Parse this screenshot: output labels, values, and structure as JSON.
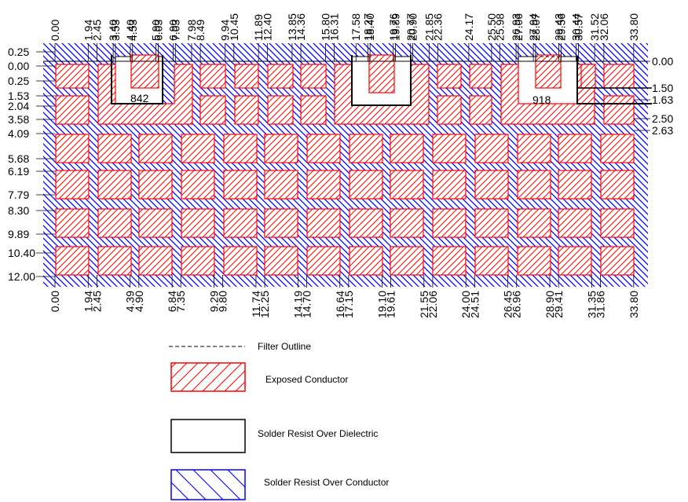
{
  "drawing": {
    "x_dimensions_top": [
      "0.00",
      "1.94",
      "2.45",
      "3.40",
      "3.53",
      "4.40",
      "4.53",
      "5.90",
      "6.03",
      "6.90",
      "7.03",
      "7.98",
      "8.49",
      "9.94",
      "10.45",
      "11.89",
      "12.40",
      "13.85",
      "14.36",
      "15.80",
      "16.31",
      "17.58",
      "18.27",
      "18.40",
      "19.76",
      "19.89",
      "20.77",
      "20.90",
      "21.85",
      "22.36",
      "24.17",
      "25.50",
      "25.98",
      "26.93",
      "27.06",
      "27.94",
      "28.07",
      "29.43",
      "29.56",
      "30.44",
      "30.57",
      "31.52",
      "32.06",
      "33.80"
    ],
    "x_dimensions_bottom": [
      "0.00",
      "1.94",
      "2.45",
      "4.39",
      "4.90",
      "6.84",
      "7.35",
      "9.29",
      "9.80",
      "11.74",
      "12.25",
      "14.19",
      "14.70",
      "16.64",
      "17.15",
      "19.10",
      "19.61",
      "21.55",
      "22.06",
      "24.00",
      "24.51",
      "26.45",
      "26.96",
      "28.90",
      "29.41",
      "31.35",
      "31.86",
      "33.80"
    ],
    "y_dimensions_left": [
      "0.25",
      "0.00",
      "0.25",
      "1.53",
      "2.04",
      "3.58",
      "4.09",
      "5.68",
      "6.19",
      "7.79",
      "8.30",
      "9.89",
      "10.40",
      "12.00"
    ],
    "y_dimensions_right": [
      "0.00",
      "1.50",
      "1.63",
      "2.50",
      "2.63"
    ],
    "filter_labels": [
      "842",
      "918"
    ]
  },
  "legend": {
    "filter_outline": "Filter Outline",
    "exposed_conductor": "Exposed Conductor",
    "solder_resist_dielectric": "Solder Resist Over Dielectric",
    "solder_resist_conductor": "Solder Resist Over Conductor"
  },
  "colors": {
    "conductor_red": "#ff0000",
    "resist_blue": "#0000ff",
    "outline_black": "#000000"
  }
}
